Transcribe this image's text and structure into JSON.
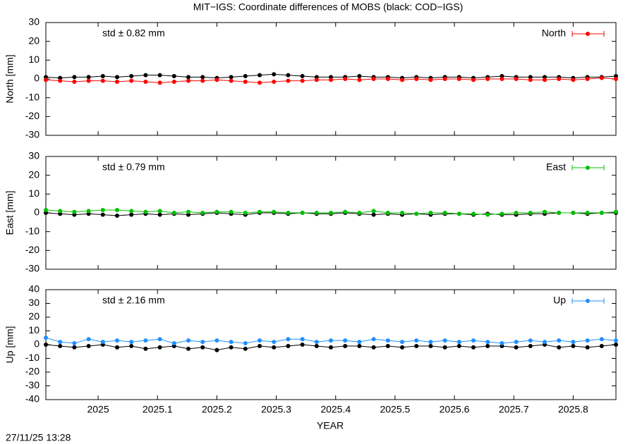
{
  "title": "MIT−IGS: Coordinate differences of MOBS (black: COD−IGS)",
  "timestamp": "27/11/25 13:28",
  "chart_data": [
    {
      "type": "scatter",
      "ylabel": "North [mm]",
      "annotation": "std ± 0.82 mm",
      "xlim": [
        2024.912,
        2025.872
      ],
      "ylim": [
        -30,
        30
      ],
      "yticks": [
        -30,
        -20,
        -10,
        0,
        10,
        20,
        30
      ],
      "x": [
        2024.912,
        2024.936,
        2024.96,
        2024.984,
        2025.008,
        2025.032,
        2025.056,
        2025.08,
        2025.104,
        2025.128,
        2025.152,
        2025.176,
        2025.2,
        2025.224,
        2025.248,
        2025.272,
        2025.296,
        2025.32,
        2025.344,
        2025.368,
        2025.392,
        2025.416,
        2025.44,
        2025.464,
        2025.488,
        2025.512,
        2025.536,
        2025.56,
        2025.584,
        2025.608,
        2025.632,
        2025.656,
        2025.68,
        2025.704,
        2025.728,
        2025.752,
        2025.776,
        2025.8,
        2025.824,
        2025.848,
        2025.872
      ],
      "series": [
        {
          "color": "#000000",
          "values": [
            1,
            0.5,
            1,
            1,
            1.5,
            1,
            1.5,
            2,
            2,
            1.5,
            1,
            1,
            0.5,
            1,
            1.5,
            2,
            2.5,
            2,
            1.5,
            1,
            1,
            1,
            1.5,
            1,
            1,
            0.5,
            1,
            0.5,
            1,
            1,
            0.5,
            1,
            1.5,
            1,
            1,
            1,
            1,
            0.5,
            1,
            1,
            1.5
          ]
        },
        {
          "name": "North",
          "color": "#ff0000",
          "values": [
            -0.5,
            -1,
            -1.5,
            -1,
            -1,
            -1.5,
            -1,
            -1.5,
            -2,
            -1.5,
            -1,
            -1,
            -0.5,
            -1,
            -1.5,
            -2,
            -1.5,
            -1,
            -1,
            -0.5,
            -0.5,
            0,
            -0.5,
            0,
            0,
            -0.5,
            0,
            -0.5,
            0,
            0,
            -0.5,
            0,
            0,
            0,
            -0.5,
            -0.5,
            0,
            -0.5,
            0,
            0.5,
            0
          ]
        }
      ]
    },
    {
      "type": "scatter",
      "ylabel": "East [mm]",
      "annotation": "std ± 0.79 mm",
      "xlim": [
        2024.912,
        2025.872
      ],
      "ylim": [
        -30,
        30
      ],
      "yticks": [
        -30,
        -20,
        -10,
        0,
        10,
        20,
        30
      ],
      "x": [
        2024.912,
        2024.936,
        2024.96,
        2024.984,
        2025.008,
        2025.032,
        2025.056,
        2025.08,
        2025.104,
        2025.128,
        2025.152,
        2025.176,
        2025.2,
        2025.224,
        2025.248,
        2025.272,
        2025.296,
        2025.32,
        2025.344,
        2025.368,
        2025.392,
        2025.416,
        2025.44,
        2025.464,
        2025.488,
        2025.512,
        2025.536,
        2025.56,
        2025.584,
        2025.608,
        2025.632,
        2025.656,
        2025.68,
        2025.704,
        2025.728,
        2025.752,
        2025.776,
        2025.8,
        2025.824,
        2025.848,
        2025.872
      ],
      "series": [
        {
          "color": "#000000",
          "values": [
            0,
            -0.5,
            -1,
            -0.5,
            -1,
            -1.5,
            -1,
            -0.5,
            -1,
            -0.5,
            -1,
            -0.5,
            0,
            -0.5,
            -1,
            0,
            0,
            -0.5,
            0,
            -0.5,
            -0.5,
            0,
            -0.5,
            -1,
            -0.5,
            -1,
            -0.5,
            -1,
            -0.5,
            -0.5,
            -1,
            -0.5,
            -1,
            -1,
            -0.5,
            -0.5,
            0,
            0,
            -0.5,
            0,
            0
          ]
        },
        {
          "name": "East",
          "color": "#00c000",
          "values": [
            1.5,
            1,
            0.5,
            1,
            1.5,
            1.5,
            1,
            0.5,
            1,
            0,
            0.5,
            0,
            0.5,
            0.5,
            0,
            0.5,
            0.5,
            0,
            0,
            0,
            0,
            0.5,
            0,
            1,
            0,
            0,
            -0.5,
            0,
            0,
            -0.5,
            -0.5,
            -1,
            -0.5,
            0,
            0,
            0.5,
            0,
            0,
            0,
            0,
            0.5
          ]
        }
      ]
    },
    {
      "type": "scatter",
      "ylabel": "Up [mm]",
      "xlabel": "YEAR",
      "annotation": "std ± 2.16 mm",
      "xlim": [
        2024.912,
        2025.872
      ],
      "xticks": [
        2025,
        2025.1,
        2025.2,
        2025.3,
        2025.4,
        2025.5,
        2025.6,
        2025.7,
        2025.8
      ],
      "ylim": [
        -40,
        40
      ],
      "yticks": [
        -40,
        -30,
        -20,
        -10,
        0,
        10,
        20,
        30,
        40
      ],
      "x": [
        2024.912,
        2024.936,
        2024.96,
        2024.984,
        2025.008,
        2025.032,
        2025.056,
        2025.08,
        2025.104,
        2025.128,
        2025.152,
        2025.176,
        2025.2,
        2025.224,
        2025.248,
        2025.272,
        2025.296,
        2025.32,
        2025.344,
        2025.368,
        2025.392,
        2025.416,
        2025.44,
        2025.464,
        2025.488,
        2025.512,
        2025.536,
        2025.56,
        2025.584,
        2025.608,
        2025.632,
        2025.656,
        2025.68,
        2025.704,
        2025.728,
        2025.752,
        2025.776,
        2025.8,
        2025.824,
        2025.848,
        2025.872
      ],
      "series": [
        {
          "color": "#000000",
          "values": [
            0,
            -1,
            -2,
            -1,
            0,
            -2,
            -1,
            -3,
            -2,
            -1,
            -3,
            -2,
            -4,
            -2,
            -3,
            -1,
            -2,
            -1,
            0,
            -1,
            -2,
            -1,
            -1,
            -2,
            -1,
            -2,
            -1,
            -1,
            -2,
            -1,
            -2,
            -1,
            -1,
            -2,
            -1,
            0,
            -2,
            -1,
            -2,
            -1,
            0
          ]
        },
        {
          "name": "Up",
          "color": "#1e90ff",
          "values": [
            5,
            2,
            1,
            4,
            2,
            3,
            2,
            3,
            4,
            1,
            3,
            2,
            3,
            2,
            1,
            3,
            2,
            4,
            4,
            2,
            3,
            3,
            2,
            4,
            3,
            2,
            3,
            2,
            3,
            2,
            3,
            2,
            1,
            2,
            3,
            2,
            3,
            2,
            3,
            4,
            3
          ]
        }
      ]
    }
  ]
}
